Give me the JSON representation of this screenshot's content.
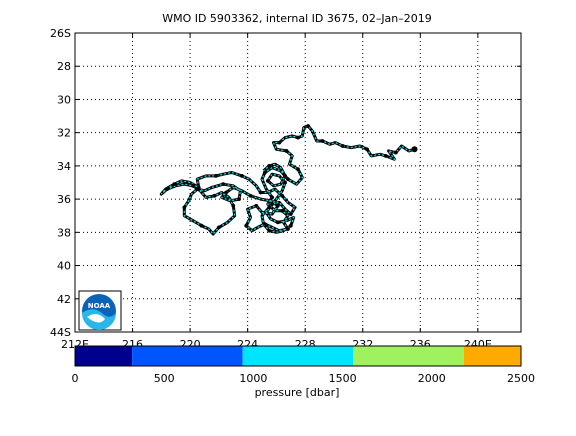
{
  "chart_data": {
    "type": "scatter",
    "title": "WMO ID 5903362, internal ID 3675, 02–Jan–2019",
    "xlim": [
      212,
      243
    ],
    "ylim": [
      44,
      26
    ],
    "x_ticks": [
      {
        "value": 212,
        "label": "212E"
      },
      {
        "value": 216,
        "label": "216"
      },
      {
        "value": 220,
        "label": "220"
      },
      {
        "value": 224,
        "label": "224"
      },
      {
        "value": 228,
        "label": "228"
      },
      {
        "value": 232,
        "label": "232"
      },
      {
        "value": 236,
        "label": "236"
      },
      {
        "value": 240,
        "label": "240E"
      }
    ],
    "y_ticks": [
      {
        "value": 26,
        "label": "26S"
      },
      {
        "value": 28,
        "label": "28"
      },
      {
        "value": 30,
        "label": "30"
      },
      {
        "value": 32,
        "label": "32"
      },
      {
        "value": 34,
        "label": "34"
      },
      {
        "value": 36,
        "label": "36"
      },
      {
        "value": 38,
        "label": "38"
      },
      {
        "value": 40,
        "label": "40"
      },
      {
        "value": 42,
        "label": "42"
      },
      {
        "value": 44,
        "label": "44S"
      }
    ],
    "grid": true,
    "track_color": "#000000",
    "marker_color": "#00e5ee",
    "track": [
      [
        235.6,
        33.0
      ],
      [
        235.2,
        33.1
      ],
      [
        234.7,
        32.8
      ],
      [
        234.3,
        33.2
      ],
      [
        233.8,
        33.1
      ],
      [
        234.2,
        33.6
      ],
      [
        233.6,
        33.4
      ],
      [
        233.2,
        33.3
      ],
      [
        232.6,
        33.4
      ],
      [
        232.3,
        33.0
      ],
      [
        231.8,
        32.8
      ],
      [
        231.2,
        32.9
      ],
      [
        230.6,
        32.8
      ],
      [
        230.1,
        32.6
      ],
      [
        229.7,
        32.7
      ],
      [
        229.2,
        32.5
      ],
      [
        228.8,
        32.5
      ],
      [
        228.5,
        31.9
      ],
      [
        228.2,
        31.6
      ],
      [
        227.9,
        31.7
      ],
      [
        227.8,
        32.2
      ],
      [
        227.5,
        32.3
      ],
      [
        227.1,
        32.2
      ],
      [
        226.6,
        32.3
      ],
      [
        226.2,
        32.6
      ],
      [
        225.8,
        32.6
      ],
      [
        226.0,
        33.0
      ],
      [
        226.7,
        33.1
      ],
      [
        227.1,
        33.4
      ],
      [
        226.9,
        33.9
      ],
      [
        227.5,
        34.2
      ],
      [
        227.8,
        34.7
      ],
      [
        227.4,
        35.1
      ],
      [
        226.8,
        34.8
      ],
      [
        226.3,
        34.3
      ],
      [
        225.7,
        34.1
      ],
      [
        225.2,
        34.4
      ],
      [
        225.0,
        34.8
      ],
      [
        225.3,
        35.4
      ],
      [
        225.7,
        35.9
      ],
      [
        225.4,
        36.3
      ],
      [
        225.9,
        36.7
      ],
      [
        226.4,
        36.7
      ],
      [
        226.8,
        37.0
      ],
      [
        226.5,
        37.4
      ],
      [
        226.8,
        37.8
      ],
      [
        226.2,
        37.9
      ],
      [
        225.7,
        37.7
      ],
      [
        225.2,
        37.5
      ],
      [
        224.7,
        37.7
      ],
      [
        224.3,
        37.9
      ],
      [
        223.9,
        37.6
      ],
      [
        224.2,
        37.1
      ],
      [
        224.0,
        36.6
      ],
      [
        224.6,
        36.4
      ],
      [
        225.0,
        36.8
      ],
      [
        225.7,
        36.9
      ],
      [
        226.1,
        36.4
      ],
      [
        225.6,
        36.1
      ],
      [
        224.9,
        36.0
      ],
      [
        224.2,
        35.8
      ],
      [
        223.6,
        35.5
      ],
      [
        223.0,
        35.3
      ],
      [
        222.5,
        35.6
      ],
      [
        222.2,
        35.9
      ],
      [
        222.8,
        36.1
      ],
      [
        223.4,
        36.0
      ],
      [
        223.5,
        35.5
      ],
      [
        223.0,
        35.2
      ],
      [
        222.3,
        35.1
      ],
      [
        221.5,
        35.3
      ],
      [
        221.0,
        35.5
      ],
      [
        220.5,
        35.4
      ],
      [
        220.1,
        35.7
      ],
      [
        219.9,
        36.1
      ],
      [
        219.6,
        36.5
      ],
      [
        219.6,
        37.0
      ],
      [
        220.2,
        37.3
      ],
      [
        220.8,
        37.6
      ],
      [
        221.3,
        37.8
      ],
      [
        221.6,
        38.1
      ],
      [
        222.0,
        37.7
      ],
      [
        222.6,
        37.4
      ],
      [
        223.1,
        37.0
      ],
      [
        223.0,
        36.4
      ],
      [
        222.7,
        35.9
      ],
      [
        222.2,
        35.6
      ],
      [
        221.7,
        35.8
      ],
      [
        221.1,
        35.9
      ],
      [
        220.7,
        35.5
      ],
      [
        220.2,
        35.2
      ],
      [
        219.6,
        35.1
      ],
      [
        219.0,
        35.2
      ],
      [
        218.4,
        35.4
      ],
      [
        218.0,
        35.7
      ],
      [
        218.3,
        35.4
      ],
      [
        218.9,
        35.1
      ],
      [
        219.4,
        34.9
      ],
      [
        220.0,
        35.0
      ],
      [
        220.6,
        35.3
      ],
      [
        220.5,
        34.8
      ],
      [
        221.1,
        34.6
      ],
      [
        221.8,
        34.6
      ],
      [
        222.3,
        34.5
      ],
      [
        222.9,
        34.4
      ],
      [
        223.6,
        34.6
      ],
      [
        224.1,
        34.8
      ],
      [
        224.6,
        35.2
      ],
      [
        224.9,
        35.6
      ],
      [
        225.4,
        35.6
      ],
      [
        225.9,
        35.4
      ],
      [
        226.4,
        35.8
      ],
      [
        226.8,
        36.2
      ],
      [
        227.3,
        36.5
      ],
      [
        227.0,
        36.9
      ],
      [
        226.6,
        36.6
      ],
      [
        226.2,
        36.2
      ],
      [
        225.7,
        36.3
      ],
      [
        225.3,
        36.8
      ],
      [
        225.6,
        37.2
      ],
      [
        226.1,
        37.4
      ],
      [
        226.7,
        37.3
      ],
      [
        227.2,
        37.1
      ],
      [
        227.0,
        37.6
      ],
      [
        226.5,
        37.9
      ],
      [
        226.0,
        38.0
      ],
      [
        225.5,
        37.9
      ],
      [
        225.1,
        37.5
      ],
      [
        225.0,
        37.0
      ],
      [
        225.5,
        36.5
      ],
      [
        226.0,
        36.0
      ],
      [
        226.4,
        35.5
      ],
      [
        226.6,
        35.0
      ],
      [
        226.2,
        34.6
      ],
      [
        225.7,
        34.5
      ],
      [
        225.4,
        34.9
      ],
      [
        225.8,
        35.2
      ],
      [
        226.3,
        35.1
      ],
      [
        226.6,
        34.6
      ],
      [
        226.3,
        34.1
      ],
      [
        225.9,
        33.9
      ],
      [
        225.5,
        34.0
      ],
      [
        225.1,
        34.3
      ]
    ],
    "colorbar": {
      "label": "pressure [dbar]",
      "min": 0,
      "max": 2500,
      "ticks": [
        0,
        500,
        1000,
        1500,
        2000,
        2500
      ],
      "bins": [
        {
          "from": 0,
          "to": 320,
          "color": "#00008f"
        },
        {
          "from": 320,
          "to": 940,
          "color": "#0055ff"
        },
        {
          "from": 940,
          "to": 1560,
          "color": "#00e5ff"
        },
        {
          "from": 1560,
          "to": 2180,
          "color": "#9ff25e"
        },
        {
          "from": 2180,
          "to": 2500,
          "color": "#ffaa00"
        }
      ]
    },
    "logo": {
      "text": "NOAA",
      "color": "#0a63b8",
      "alt_color": "#2bb6e8"
    }
  }
}
